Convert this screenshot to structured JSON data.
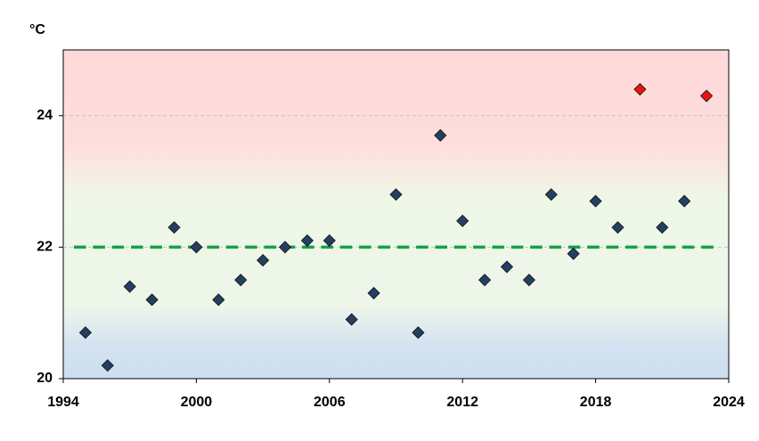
{
  "chart_data": {
    "type": "scatter",
    "y_label": "°C",
    "series": [
      {
        "color": "#243f60",
        "x": [
          1995,
          1996,
          1997,
          1998,
          1999,
          2000,
          2001,
          2002,
          2003,
          2004,
          2005,
          2006,
          2007,
          2008,
          2009,
          2010,
          2011,
          2012,
          2013,
          2014,
          2015,
          2016,
          2017,
          2018,
          2019,
          2021,
          2022
        ],
        "values": [
          20.7,
          20.2,
          21.4,
          21.2,
          22.3,
          22.0,
          21.2,
          21.5,
          21.8,
          22.0,
          22.1,
          22.1,
          20.9,
          21.3,
          22.8,
          20.7,
          23.7,
          22.4,
          21.5,
          21.7,
          21.5,
          22.8,
          21.9,
          22.7,
          22.3,
          22.3,
          22.7
        ]
      },
      {
        "color": "#e8140f",
        "x": [
          2020,
          2023
        ],
        "values": [
          24.4,
          24.3
        ]
      }
    ],
    "reference_line": {
      "value": 22,
      "color": "#16a04a"
    },
    "xlim": [
      1994,
      2024
    ],
    "xticks": [
      1994,
      2000,
      2006,
      2012,
      2018,
      2024
    ],
    "ylim": [
      20,
      25
    ],
    "yticks": [
      20,
      22,
      24
    ],
    "grid": true
  }
}
